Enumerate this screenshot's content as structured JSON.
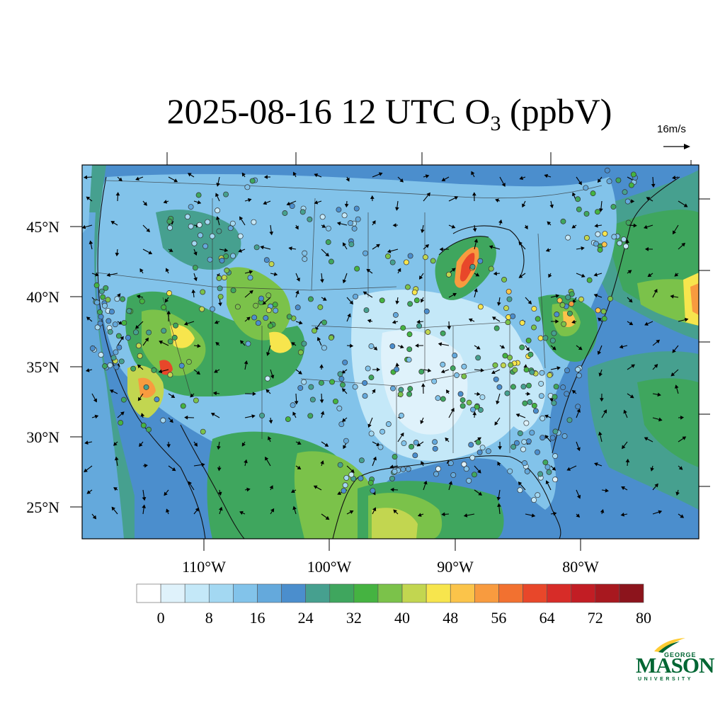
{
  "title": {
    "prefix": "2025-08-16 12 UTC O",
    "subscript": "3",
    "suffix": " (ppbV)"
  },
  "vector_reference": {
    "label": "16m/s"
  },
  "map": {
    "projection": "lambert-conformal",
    "extent": {
      "lon_min": -120,
      "lon_max": -70,
      "lat_min": 22,
      "lat_max": 50
    },
    "lat_ticks": [
      "45°N",
      "40°N",
      "35°N",
      "30°N",
      "25°N"
    ],
    "lon_ticks": [
      "110°W",
      "100°W",
      "90°W",
      "80°W"
    ],
    "field": "O3 surface concentration (filled contours)",
    "overlays": [
      "wind vectors",
      "monitoring site circles",
      "state borders",
      "coastlines"
    ]
  },
  "colorbar": {
    "labels": [
      "0",
      "8",
      "16",
      "24",
      "32",
      "40",
      "48",
      "56",
      "64",
      "72",
      "80"
    ],
    "colors": [
      "#ffffff",
      "#dff2fb",
      "#c4e8f8",
      "#a3d8f2",
      "#82c3ea",
      "#64a9dc",
      "#4b8ecd",
      "#46a08f",
      "#3fa65e",
      "#45b341",
      "#7bc24a",
      "#c2d650",
      "#f7e54d",
      "#fbc44a",
      "#f89b3f",
      "#f27130",
      "#e8472a",
      "#d72c28",
      "#c21d24",
      "#a8181f",
      "#8c141c"
    ]
  },
  "logo": {
    "line1": "GEORGE",
    "line2": "MASON",
    "line3": "UNIVERSITY",
    "color": "#006633",
    "accent": "#ffcc33"
  }
}
